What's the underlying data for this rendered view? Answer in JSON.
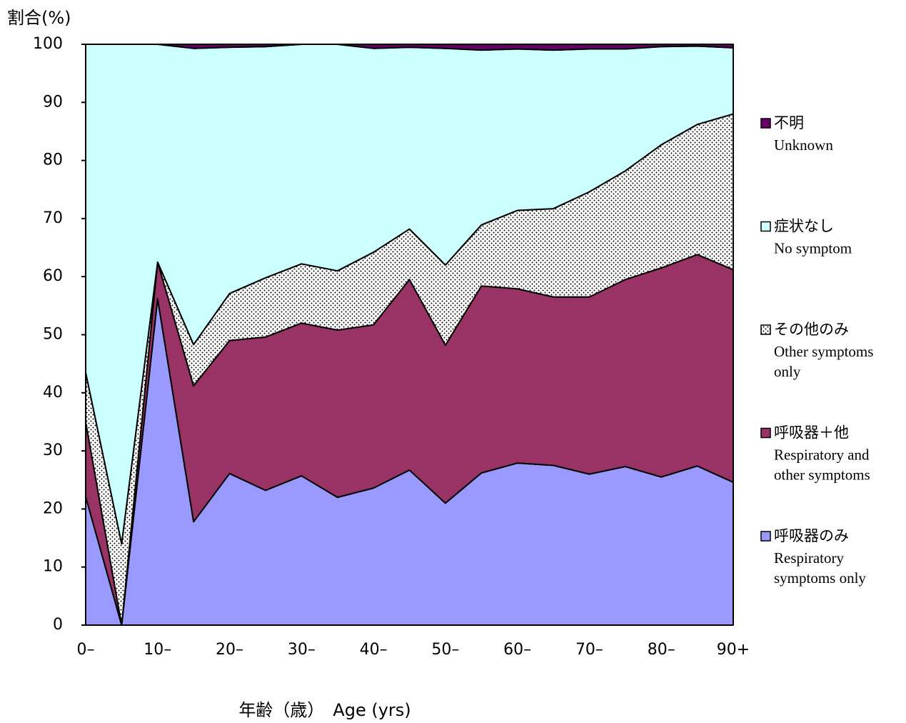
{
  "chart_data": {
    "type": "stacked_area",
    "y_axis_title": "割合(%)",
    "x_axis_title": "年齢（歳）　Age (yrs)",
    "categories": [
      "0–",
      null,
      "10–",
      null,
      "20–",
      null,
      "30–",
      null,
      "40–",
      null,
      "50–",
      null,
      "60–",
      null,
      "70–",
      null,
      "80–",
      null,
      "90+"
    ],
    "ylim": [
      0,
      100
    ],
    "yticks": [
      0,
      10,
      20,
      30,
      40,
      50,
      60,
      70,
      80,
      90,
      100
    ],
    "series": [
      {
        "name": "呼吸器のみ",
        "name_en": [
          "Respiratory",
          "symptoms only"
        ],
        "color": "#9999ff",
        "values": [
          22.1,
          0,
          56.2,
          17.8,
          26.1,
          23.2,
          25.7,
          22,
          23.6,
          26.7,
          21,
          26.2,
          27.9,
          27.5,
          26,
          27.3,
          25.5,
          27.4,
          24.6
        ]
      },
      {
        "name": "呼吸器＋他",
        "name_en": [
          "Respiratory and",
          "other symptoms"
        ],
        "color": "#993366",
        "values": [
          12.9,
          0,
          6.3,
          23.4,
          22.9,
          26.4,
          26.3,
          28.8,
          28.1,
          32.8,
          27.2,
          32.2,
          30,
          29,
          30.5,
          32.2,
          36,
          36.4,
          36.6
        ]
      },
      {
        "name": "その他のみ",
        "name_en": [
          "Other symptoms",
          "only"
        ],
        "color": "#ffffff",
        "pattern": "dots",
        "values": [
          8.5,
          14,
          0,
          7.1,
          8.1,
          10.2,
          10.2,
          10.2,
          12.5,
          8.7,
          13.8,
          10.5,
          13.5,
          15.2,
          18.1,
          18.7,
          21.2,
          22.4,
          26.8
        ]
      },
      {
        "name": "症状なし",
        "name_en": [
          "No symptom"
        ],
        "color": "#ccffff",
        "values": [
          56.5,
          86,
          37.5,
          51,
          42.4,
          39.8,
          37.8,
          39,
          35.1,
          31.3,
          37.3,
          30.1,
          27.8,
          27.3,
          24.6,
          21,
          16.9,
          13.5,
          11.4
        ]
      },
      {
        "name": "不明",
        "name_en": [
          "Unknown"
        ],
        "color": "#660066",
        "values": [
          0,
          0,
          0,
          0.7,
          0.5,
          0.4,
          0,
          0,
          0.7,
          0.5,
          0.7,
          1,
          0.8,
          1,
          0.8,
          0.8,
          0.4,
          0.3,
          0.6
        ]
      }
    ],
    "legend": "right",
    "legend_order": "reverse"
  }
}
